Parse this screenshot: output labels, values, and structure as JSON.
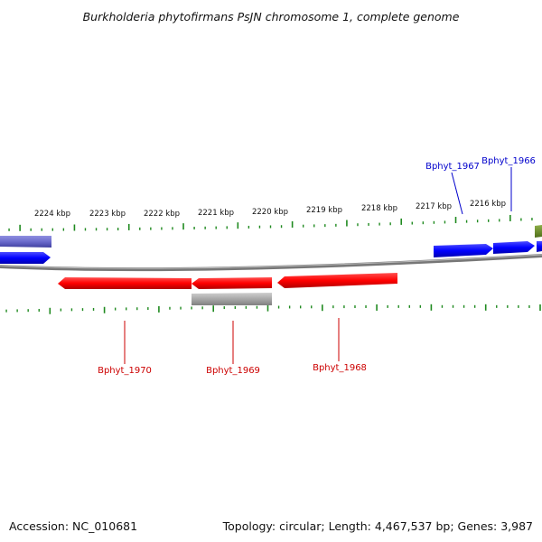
{
  "title": "Burkholderia phytofirmans PsJN chromosome 1, complete genome",
  "ruler_labels": [
    "2224 kbp",
    "2223 kbp",
    "2222 kbp",
    "2221 kbp",
    "2220 kbp",
    "2219 kbp",
    "2218 kbp",
    "2217 kbp",
    "2216 kbp"
  ],
  "genes_forward": [
    {
      "label": "Bphyt_1967",
      "color": "#0000cc"
    },
    {
      "label": "Bphyt_1966",
      "color": "#0000cc"
    }
  ],
  "genes_reverse": [
    {
      "label": "Bphyt_1970",
      "color": "#cc0000"
    },
    {
      "label": "Bphyt_1969",
      "color": "#cc0000"
    },
    {
      "label": "Bphyt_1968",
      "color": "#cc0000"
    }
  ],
  "colors": {
    "forward_gene": "#0000ff",
    "reverse_gene": "#ff0000",
    "rna_feature": "#aaaaaa",
    "other_feature": "#6b8e23",
    "faded_feature": "#6a6acc",
    "backbone": "#777777",
    "tick": "#1f8a1f"
  },
  "footer": {
    "accession": "Accession: NC_010681",
    "summary": "Topology: circular; Length: 4,467,537 bp; Genes: 3,987"
  }
}
